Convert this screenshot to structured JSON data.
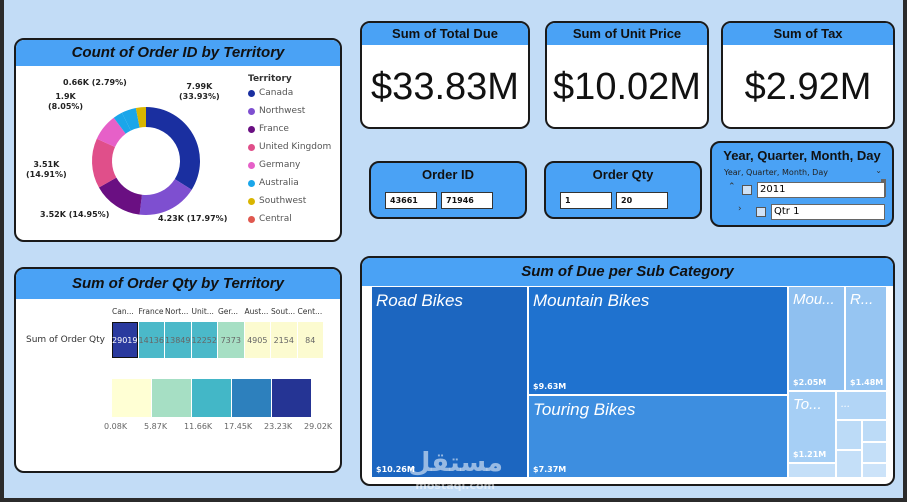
{
  "donut_card": {
    "title": "Count of Order ID by Territory",
    "legend_title": "Territory",
    "legend": [
      {
        "label": "Canada",
        "color": "#1a2fa0"
      },
      {
        "label": "Northwest",
        "color": "#7e4fd0"
      },
      {
        "label": "France",
        "color": "#6a0f82"
      },
      {
        "label": "United Kingdom",
        "color": "#e04f8a"
      },
      {
        "label": "Germany",
        "color": "#e660c8"
      },
      {
        "label": "Australia",
        "color": "#1aa6ea"
      },
      {
        "label": "Southwest",
        "color": "#d9b500"
      },
      {
        "label": "Central",
        "color": "#e0584f"
      }
    ],
    "labels": {
      "canada": "7.99K\n(33.93%)",
      "northwest": "4.23K (17.97%)",
      "france": "3.52K (14.95%)",
      "uk": "3.51K\n(14.91%)",
      "germany": "1.9K\n(8.05%)",
      "australia": "0.66K (2.79%)"
    }
  },
  "kpis": [
    {
      "title": "Sum of Total Due",
      "value": "$33.83M"
    },
    {
      "title": "Sum of Unit Price",
      "value": "$10.02M"
    },
    {
      "title": "Sum of Tax",
      "value": "$2.92M"
    }
  ],
  "slicers": {
    "order_id": {
      "title": "Order ID",
      "min": "43661",
      "max": "71946"
    },
    "order_qty": {
      "title": "Order Qty",
      "min": "1",
      "max": "20"
    },
    "date": {
      "title": "Year, Quarter, Month, Day",
      "header": "Year, Quarter, Month, Day",
      "year": "2011",
      "quarter": "Qtr 1"
    }
  },
  "matrix_card": {
    "title": "Sum of Order Qty by Territory",
    "row_label": "Sum of Order Qty",
    "columns": [
      "Can...",
      "France",
      "Nort...",
      "Unit...",
      "Ger...",
      "Aust...",
      "Sout...",
      "Cent..."
    ],
    "values": [
      "29019",
      "14136",
      "13849",
      "12252",
      "7373",
      "4905",
      "2154",
      "84"
    ],
    "cell_colors": [
      "#2a3a9e",
      "#4bb9c9",
      "#4bb9c9",
      "#4bb9c9",
      "#a6dfc4",
      "#fcfbd0",
      "#fcfbd0",
      "#fcfbd0"
    ],
    "scale_colors": [
      "#ffffd4",
      "#a6dfc4",
      "#43b7c7",
      "#2d80bd",
      "#253494"
    ],
    "scale_labels": [
      "0.08K",
      "5.87K",
      "11.66K",
      "17.45K",
      "23.23K",
      "29.02K"
    ]
  },
  "treemap_card": {
    "title": "Sum of Due per Sub Category",
    "tiles": [
      {
        "label": "Road Bikes",
        "value": "$10.26M",
        "color": "#1c66c0"
      },
      {
        "label": "Mountain Bikes",
        "value": "$9.63M",
        "color": "#1f72cf"
      },
      {
        "label": "Touring Bikes",
        "value": "$7.37M",
        "color": "#3d8ee0"
      },
      {
        "label": "Mou...",
        "value": "$2.05M",
        "color": "#8fc0f0"
      },
      {
        "label": "R...",
        "value": "$1.48M",
        "color": "#96c5f2"
      },
      {
        "label": "To...",
        "value": "$1.21M",
        "color": "#a6cff5"
      }
    ]
  },
  "watermark": {
    "text": "مستقل",
    "sub": "mostaql.com"
  }
}
